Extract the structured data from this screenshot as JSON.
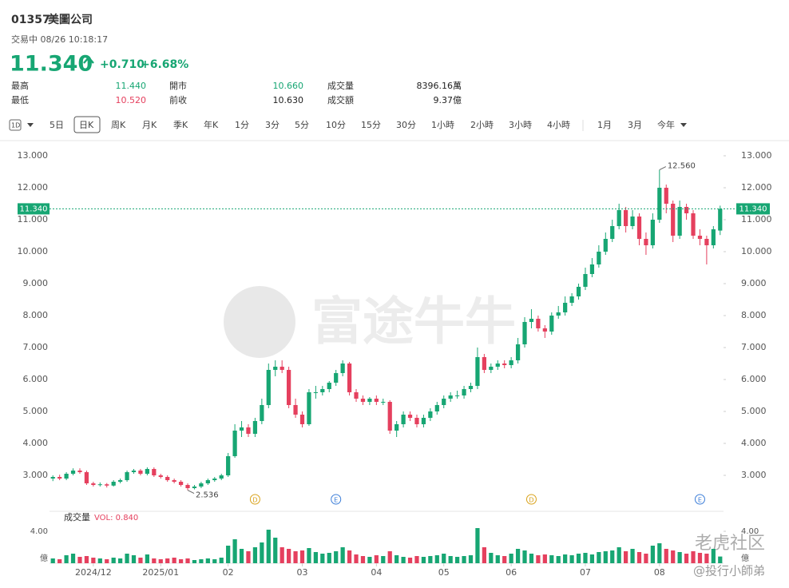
{
  "header": {
    "symbol": "01357",
    "name": "美圖公司",
    "status": "交易中 08/26 10:18:17",
    "price": "11.340",
    "change": "+0.710",
    "change_pct": "+6.68%",
    "stats": [
      [
        {
          "label": "最高",
          "value": "11.440",
          "color": "#17a673"
        },
        {
          "label": "開市",
          "value": "10.660",
          "color": "#17a673"
        },
        {
          "label": "成交量",
          "value": "8396.16萬",
          "color": "#222"
        }
      ],
      [
        {
          "label": "最低",
          "value": "10.520",
          "color": "#e5405e"
        },
        {
          "label": "前收",
          "value": "10.630",
          "color": "#222"
        },
        {
          "label": "成交額",
          "value": "9.37億",
          "color": "#222"
        }
      ]
    ]
  },
  "toolbar": [
    "1D",
    "5日",
    "日K",
    "周K",
    "月K",
    "季K",
    "年K",
    "1分",
    "3分",
    "5分",
    "10分",
    "15分",
    "30分",
    "1小時",
    "2小時",
    "3小時",
    "4小時",
    "1月",
    "3月",
    "今年"
  ],
  "watermark": "富途牛牛",
  "footer": {
    "brand": "老虎社区",
    "author": "@投行小師弟"
  },
  "chart_data": {
    "type": "candlestick",
    "up_color": "#17a673",
    "down_color": "#e5405e",
    "open": [
      2.9,
      2.95,
      2.9,
      3.05,
      3.15,
      3.1,
      2.75,
      2.7,
      2.72,
      2.68,
      2.8,
      2.85,
      3.1,
      3.15,
      3.05,
      3.2,
      3.0,
      2.95,
      2.85,
      2.8,
      2.7,
      2.6,
      2.65,
      2.75,
      2.85,
      2.9,
      3.0,
      3.6,
      4.4,
      4.5,
      4.3,
      4.7,
      5.2,
      6.3,
      6.4,
      6.3,
      5.2,
      4.9,
      4.6,
      5.6,
      5.6,
      5.7,
      5.9,
      6.2,
      6.5,
      5.6,
      5.4,
      5.3,
      5.4,
      5.3,
      5.3,
      4.4,
      4.6,
      4.9,
      4.8,
      4.6,
      4.8,
      5.0,
      5.2,
      5.4,
      5.5,
      5.5,
      5.7,
      5.8,
      6.7,
      6.3,
      6.4,
      6.5,
      6.45,
      6.6,
      7.1,
      7.8,
      7.9,
      7.6,
      7.5,
      8.0,
      8.1,
      8.4,
      8.6,
      8.9,
      9.3,
      9.6,
      10.0,
      10.4,
      10.8,
      11.3,
      10.8,
      11.1,
      10.4,
      10.2,
      11.0,
      12.0,
      11.5,
      10.5,
      11.4,
      11.2,
      10.5,
      10.4,
      10.2,
      10.66
    ],
    "high": [
      3.0,
      3.02,
      3.1,
      3.22,
      3.22,
      3.15,
      2.8,
      2.78,
      2.76,
      2.85,
      2.9,
      3.15,
      3.2,
      3.2,
      3.25,
      3.25,
      3.05,
      3.0,
      2.9,
      2.85,
      2.75,
      2.7,
      2.8,
      2.9,
      2.95,
      3.05,
      3.7,
      4.6,
      4.7,
      4.6,
      4.8,
      5.4,
      6.5,
      6.6,
      6.6,
      6.4,
      5.4,
      5.0,
      5.7,
      5.8,
      5.8,
      5.95,
      6.3,
      6.6,
      6.55,
      5.7,
      5.5,
      5.45,
      5.5,
      5.4,
      5.35,
      4.7,
      5.0,
      5.0,
      4.9,
      4.9,
      5.1,
      5.3,
      5.5,
      5.6,
      5.65,
      5.8,
      5.9,
      7.0,
      6.8,
      6.5,
      6.6,
      6.6,
      6.7,
      7.3,
      7.95,
      8.2,
      8.0,
      7.7,
      8.1,
      8.3,
      8.6,
      8.7,
      9.0,
      9.5,
      9.8,
      10.2,
      10.6,
      11.0,
      11.5,
      11.4,
      11.3,
      11.2,
      10.6,
      11.2,
      12.56,
      12.1,
      11.6,
      11.6,
      11.5,
      11.3,
      10.7,
      10.5,
      10.8,
      11.44
    ],
    "low": [
      2.82,
      2.85,
      2.85,
      3.0,
      3.05,
      2.7,
      2.65,
      2.65,
      2.62,
      2.65,
      2.75,
      2.8,
      3.05,
      3.0,
      3.0,
      2.95,
      2.9,
      2.8,
      2.75,
      2.65,
      2.536,
      2.56,
      2.6,
      2.7,
      2.8,
      2.85,
      2.95,
      3.55,
      4.2,
      4.2,
      4.2,
      4.6,
      5.1,
      6.1,
      6.2,
      5.1,
      4.8,
      4.5,
      4.55,
      5.4,
      5.5,
      5.6,
      5.8,
      6.1,
      5.5,
      5.3,
      5.2,
      5.2,
      5.2,
      5.2,
      4.3,
      4.2,
      4.5,
      4.7,
      4.5,
      4.5,
      4.7,
      4.9,
      5.1,
      5.3,
      5.4,
      5.4,
      5.6,
      5.7,
      6.2,
      6.2,
      6.3,
      6.35,
      6.35,
      6.5,
      7.0,
      7.6,
      7.5,
      7.3,
      7.4,
      7.9,
      8.0,
      8.3,
      8.5,
      8.8,
      9.2,
      9.5,
      9.9,
      10.3,
      10.7,
      10.6,
      10.7,
      10.2,
      9.9,
      10.1,
      10.9,
      11.2,
      10.3,
      10.4,
      11.0,
      10.4,
      10.2,
      9.6,
      10.1,
      10.52
    ],
    "close": [
      2.95,
      2.9,
      3.05,
      3.15,
      3.1,
      2.75,
      2.7,
      2.72,
      2.68,
      2.8,
      2.85,
      3.1,
      3.15,
      3.05,
      3.2,
      3.0,
      2.95,
      2.85,
      2.8,
      2.7,
      2.6,
      2.65,
      2.75,
      2.85,
      2.9,
      3.0,
      3.6,
      4.4,
      4.5,
      4.3,
      4.7,
      5.2,
      6.3,
      6.4,
      6.3,
      5.2,
      4.9,
      4.6,
      5.6,
      5.6,
      5.7,
      5.9,
      6.2,
      6.5,
      5.6,
      5.4,
      5.3,
      5.4,
      5.3,
      5.3,
      4.4,
      4.6,
      4.9,
      4.8,
      4.6,
      4.8,
      5.0,
      5.2,
      5.4,
      5.5,
      5.5,
      5.7,
      5.8,
      6.7,
      6.3,
      6.4,
      6.5,
      6.45,
      6.6,
      7.1,
      7.8,
      7.9,
      7.6,
      7.5,
      8.0,
      8.1,
      8.4,
      8.6,
      8.9,
      9.3,
      9.6,
      10.0,
      10.4,
      10.8,
      11.3,
      10.8,
      11.1,
      10.4,
      10.2,
      11.0,
      12.0,
      11.5,
      10.5,
      11.4,
      11.2,
      10.5,
      10.4,
      10.2,
      10.7,
      11.34
    ],
    "xlim": [
      -0.5,
      99.5
    ],
    "xticks": [
      {
        "value": 6,
        "label": "2024/12"
      },
      {
        "value": 16,
        "label": "2025/01"
      },
      {
        "value": 26,
        "label": "02"
      },
      {
        "value": 37,
        "label": "03"
      },
      {
        "value": 48,
        "label": "04"
      },
      {
        "value": 58,
        "label": "05"
      },
      {
        "value": 68,
        "label": "06"
      },
      {
        "value": 79,
        "label": "07"
      },
      {
        "value": 90,
        "label": "08"
      }
    ],
    "ylim": [
      2.2,
      13.5
    ],
    "yticks": [
      {
        "value": 3,
        "label": "3.000"
      },
      {
        "value": 4,
        "label": "4.000"
      },
      {
        "value": 5,
        "label": "5.000"
      },
      {
        "value": 6,
        "label": "6.000"
      },
      {
        "value": 7,
        "label": "7.000"
      },
      {
        "value": 8,
        "label": "8.000"
      },
      {
        "value": 9,
        "label": "9.000"
      },
      {
        "value": 10,
        "label": "10.000"
      },
      {
        "value": 11,
        "label": "11.000"
      },
      {
        "value": 12,
        "label": "12.000"
      },
      {
        "value": 13,
        "label": "13.000"
      }
    ],
    "grid": false,
    "last_price": {
      "value": 11.34,
      "label": "11.340"
    },
    "max_label": "12.560",
    "min_label": "2.536",
    "events": [
      {
        "label": "D",
        "index": 30,
        "color": "#d9a21b"
      },
      {
        "label": "E",
        "index": 42,
        "color": "#3b7dd8"
      },
      {
        "label": "D",
        "index": 71,
        "color": "#d9a21b"
      },
      {
        "label": "E",
        "index": 96,
        "color": "#3b7dd8"
      }
    ],
    "volume": {
      "title": "成交量",
      "label": "VOL: 0.840",
      "unit": "億",
      "ylim": [
        0,
        4.5
      ],
      "yticks": [
        {
          "value": 4,
          "label": "4.00"
        }
      ],
      "values": [
        0.6,
        0.5,
        1.0,
        1.2,
        0.8,
        0.9,
        0.7,
        0.6,
        0.5,
        0.7,
        0.6,
        1.2,
        1.0,
        0.7,
        1.1,
        0.6,
        0.5,
        0.6,
        0.7,
        0.5,
        0.6,
        0.4,
        0.5,
        0.6,
        0.5,
        0.7,
        2.2,
        3.0,
        1.8,
        1.5,
        2.0,
        2.6,
        4.2,
        3.2,
        2.0,
        1.8,
        1.5,
        1.6,
        1.9,
        1.4,
        1.2,
        1.3,
        1.5,
        2.0,
        1.6,
        1.1,
        0.9,
        0.8,
        1.0,
        0.9,
        1.5,
        1.0,
        0.8,
        0.7,
        0.9,
        0.8,
        0.9,
        1.0,
        1.2,
        0.9,
        0.8,
        0.9,
        1.0,
        4.4,
        2.0,
        1.3,
        1.0,
        0.9,
        1.2,
        1.8,
        1.6,
        1.2,
        1.0,
        1.1,
        1.0,
        0.9,
        1.1,
        1.0,
        1.2,
        1.3,
        1.1,
        1.4,
        1.5,
        1.6,
        2.0,
        1.5,
        1.8,
        1.4,
        1.2,
        2.2,
        2.5,
        1.8,
        1.6,
        1.4,
        1.2,
        1.5,
        1.3,
        1.2,
        1.8,
        0.84
      ]
    }
  }
}
